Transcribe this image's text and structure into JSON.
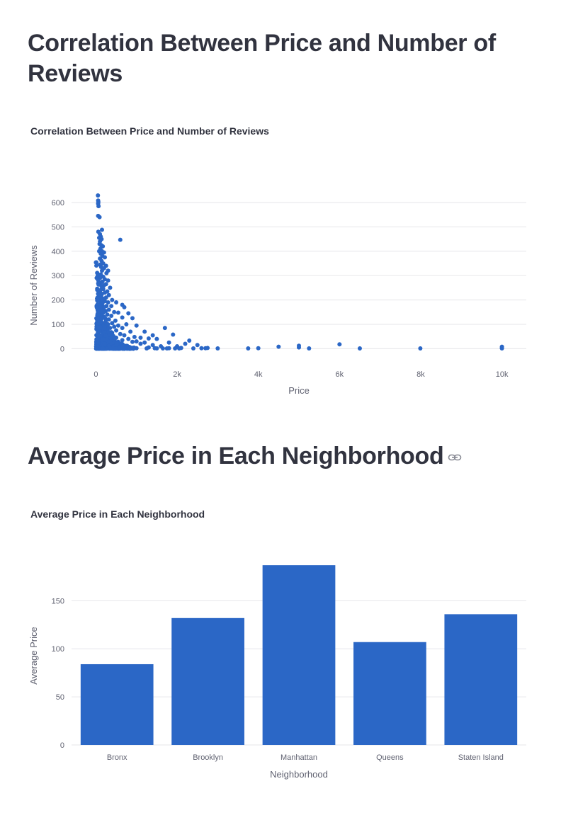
{
  "headings": {
    "scatter_heading": "Correlation Between Price and Number of Reviews",
    "bar_heading": "Average Price in Each Neighborhood"
  },
  "icons": {
    "anchor_link": "link-icon"
  },
  "colors": {
    "marker": "#2b67c6",
    "grid": "#e6e6ea",
    "axis_text": "#5f6170"
  },
  "chart_data": [
    {
      "type": "scatter",
      "title": "Correlation Between Price and Number of Reviews",
      "xlabel": "Price",
      "ylabel": "Number of Reviews",
      "xlim": [
        -600,
        10600
      ],
      "ylim": [
        -25,
        690
      ],
      "x_ticks": [
        0,
        2000,
        4000,
        6000,
        8000,
        10000
      ],
      "x_tick_labels": [
        "0",
        "2k",
        "4k",
        "6k",
        "8k",
        "10k"
      ],
      "y_ticks": [
        0,
        100,
        200,
        300,
        400,
        500,
        600
      ],
      "y_tick_labels": [
        "0",
        "100",
        "200",
        "300",
        "400",
        "500",
        "600"
      ],
      "grid": true,
      "points": [
        [
          50,
          629
        ],
        [
          55,
          608
        ],
        [
          60,
          602
        ],
        [
          55,
          595
        ],
        [
          65,
          585
        ],
        [
          55,
          545
        ],
        [
          90,
          540
        ],
        [
          60,
          480
        ],
        [
          100,
          470
        ],
        [
          150,
          488
        ],
        [
          120,
          460
        ],
        [
          80,
          455
        ],
        [
          100,
          440
        ],
        [
          140,
          450
        ],
        [
          90,
          430
        ],
        [
          130,
          425
        ],
        [
          170,
          420
        ],
        [
          110,
          410
        ],
        [
          150,
          400
        ],
        [
          80,
          400
        ],
        [
          200,
          395
        ],
        [
          120,
          390
        ],
        [
          160,
          380
        ],
        [
          100,
          370
        ],
        [
          220,
          375
        ],
        [
          140,
          360
        ],
        [
          180,
          350
        ],
        [
          100,
          345
        ],
        [
          250,
          340
        ],
        [
          130,
          335
        ],
        [
          200,
          330
        ],
        [
          300,
          320
        ],
        [
          150,
          320
        ],
        [
          260,
          310
        ],
        [
          120,
          305
        ],
        [
          180,
          295
        ],
        [
          100,
          290
        ],
        [
          220,
          285
        ],
        [
          300,
          280
        ],
        [
          160,
          275
        ],
        [
          120,
          270
        ],
        [
          250,
          265
        ],
        [
          200,
          260
        ],
        [
          140,
          255
        ],
        [
          350,
          250
        ],
        [
          180,
          245
        ],
        [
          110,
          240
        ],
        [
          280,
          235
        ],
        [
          220,
          230
        ],
        [
          150,
          225
        ],
        [
          320,
          220
        ],
        [
          130,
          215
        ],
        [
          250,
          210
        ],
        [
          180,
          205
        ],
        [
          400,
          200
        ],
        [
          110,
          195
        ],
        [
          220,
          195
        ],
        [
          300,
          190
        ],
        [
          160,
          185
        ],
        [
          500,
          190
        ],
        [
          600,
          447
        ],
        [
          650,
          180
        ],
        [
          140,
          180
        ],
        [
          260,
          175
        ],
        [
          380,
          175
        ],
        [
          200,
          170
        ],
        [
          700,
          170
        ],
        [
          120,
          165
        ],
        [
          320,
          160
        ],
        [
          240,
          155
        ],
        [
          450,
          150
        ],
        [
          160,
          150
        ],
        [
          550,
          148
        ],
        [
          800,
          145
        ],
        [
          130,
          140
        ],
        [
          280,
          140
        ],
        [
          380,
          135
        ],
        [
          200,
          130
        ],
        [
          650,
          128
        ],
        [
          900,
          125
        ],
        [
          150,
          125
        ],
        [
          320,
          120
        ],
        [
          250,
          115
        ],
        [
          480,
          115
        ],
        [
          120,
          110
        ],
        [
          400,
          105
        ],
        [
          180,
          105
        ],
        [
          750,
          100
        ],
        [
          300,
          100
        ],
        [
          550,
          95
        ],
        [
          220,
          95
        ],
        [
          1000,
          95
        ],
        [
          140,
          90
        ],
        [
          450,
          90
        ],
        [
          350,
          85
        ],
        [
          650,
          85
        ],
        [
          180,
          80
        ],
        [
          280,
          75
        ],
        [
          850,
          70
        ],
        [
          500,
          75
        ],
        [
          1200,
          70
        ],
        [
          150,
          70
        ],
        [
          400,
          65
        ],
        [
          600,
          60
        ],
        [
          250,
          60
        ],
        [
          1400,
          55
        ],
        [
          700,
          55
        ],
        [
          180,
          50
        ],
        [
          350,
          50
        ],
        [
          950,
          48
        ],
        [
          1100,
          45
        ],
        [
          500,
          45
        ],
        [
          1300,
          42
        ],
        [
          220,
          40
        ],
        [
          800,
          40
        ],
        [
          1500,
          40
        ],
        [
          420,
          35
        ],
        [
          650,
          35
        ],
        [
          1000,
          30
        ],
        [
          1700,
          85
        ],
        [
          1900,
          58
        ],
        [
          2300,
          33
        ],
        [
          2500,
          15
        ],
        [
          1200,
          25
        ],
        [
          1800,
          25
        ],
        [
          2200,
          20
        ],
        [
          1400,
          15
        ],
        [
          1600,
          10
        ],
        [
          2000,
          10
        ],
        [
          300,
          30
        ],
        [
          150,
          30
        ],
        [
          900,
          28
        ],
        [
          1100,
          20
        ],
        [
          2600,
          2
        ],
        [
          2700,
          2
        ],
        [
          2750,
          3
        ],
        [
          3000,
          1
        ],
        [
          3750,
          1
        ],
        [
          4000,
          2
        ],
        [
          4500,
          8
        ],
        [
          5000,
          12
        ],
        [
          5000,
          5
        ],
        [
          5250,
          1
        ],
        [
          6000,
          18
        ],
        [
          6500,
          1
        ],
        [
          7990,
          1
        ],
        [
          10000,
          8
        ],
        [
          10000,
          3
        ],
        [
          10000,
          1
        ],
        [
          1500,
          1
        ],
        [
          1800,
          2
        ],
        [
          2100,
          3
        ],
        [
          1300,
          5
        ],
        [
          1650,
          1
        ],
        [
          1950,
          1
        ],
        [
          1000,
          2
        ],
        [
          800,
          3
        ],
        [
          600,
          5
        ],
        [
          400,
          8
        ],
        [
          200,
          10
        ],
        [
          100,
          12
        ],
        [
          50,
          15
        ],
        [
          80,
          20
        ],
        [
          60,
          25
        ],
        [
          70,
          5
        ],
        [
          90,
          2
        ],
        [
          40,
          1
        ],
        [
          30,
          3
        ],
        [
          120,
          1
        ],
        [
          170,
          2
        ],
        [
          250,
          1
        ],
        [
          350,
          2
        ],
        [
          450,
          1
        ],
        [
          550,
          2
        ],
        [
          700,
          1
        ],
        [
          1250,
          1
        ],
        [
          1450,
          2
        ],
        [
          1750,
          1
        ],
        [
          2050,
          1
        ],
        [
          2400,
          1
        ]
      ]
    },
    {
      "type": "bar",
      "title": "Average Price in Each Neighborhood",
      "xlabel": "Neighborhood",
      "ylabel": "Average Price",
      "categories": [
        "Bronx",
        "Brooklyn",
        "Manhattan",
        "Queens",
        "Staten Island"
      ],
      "values": [
        84,
        132,
        187,
        107,
        136
      ],
      "ylim": [
        0,
        193
      ],
      "y_ticks": [
        0,
        50,
        100,
        150
      ],
      "y_tick_labels": [
        "0",
        "50",
        "100",
        "150"
      ],
      "grid": true
    }
  ]
}
